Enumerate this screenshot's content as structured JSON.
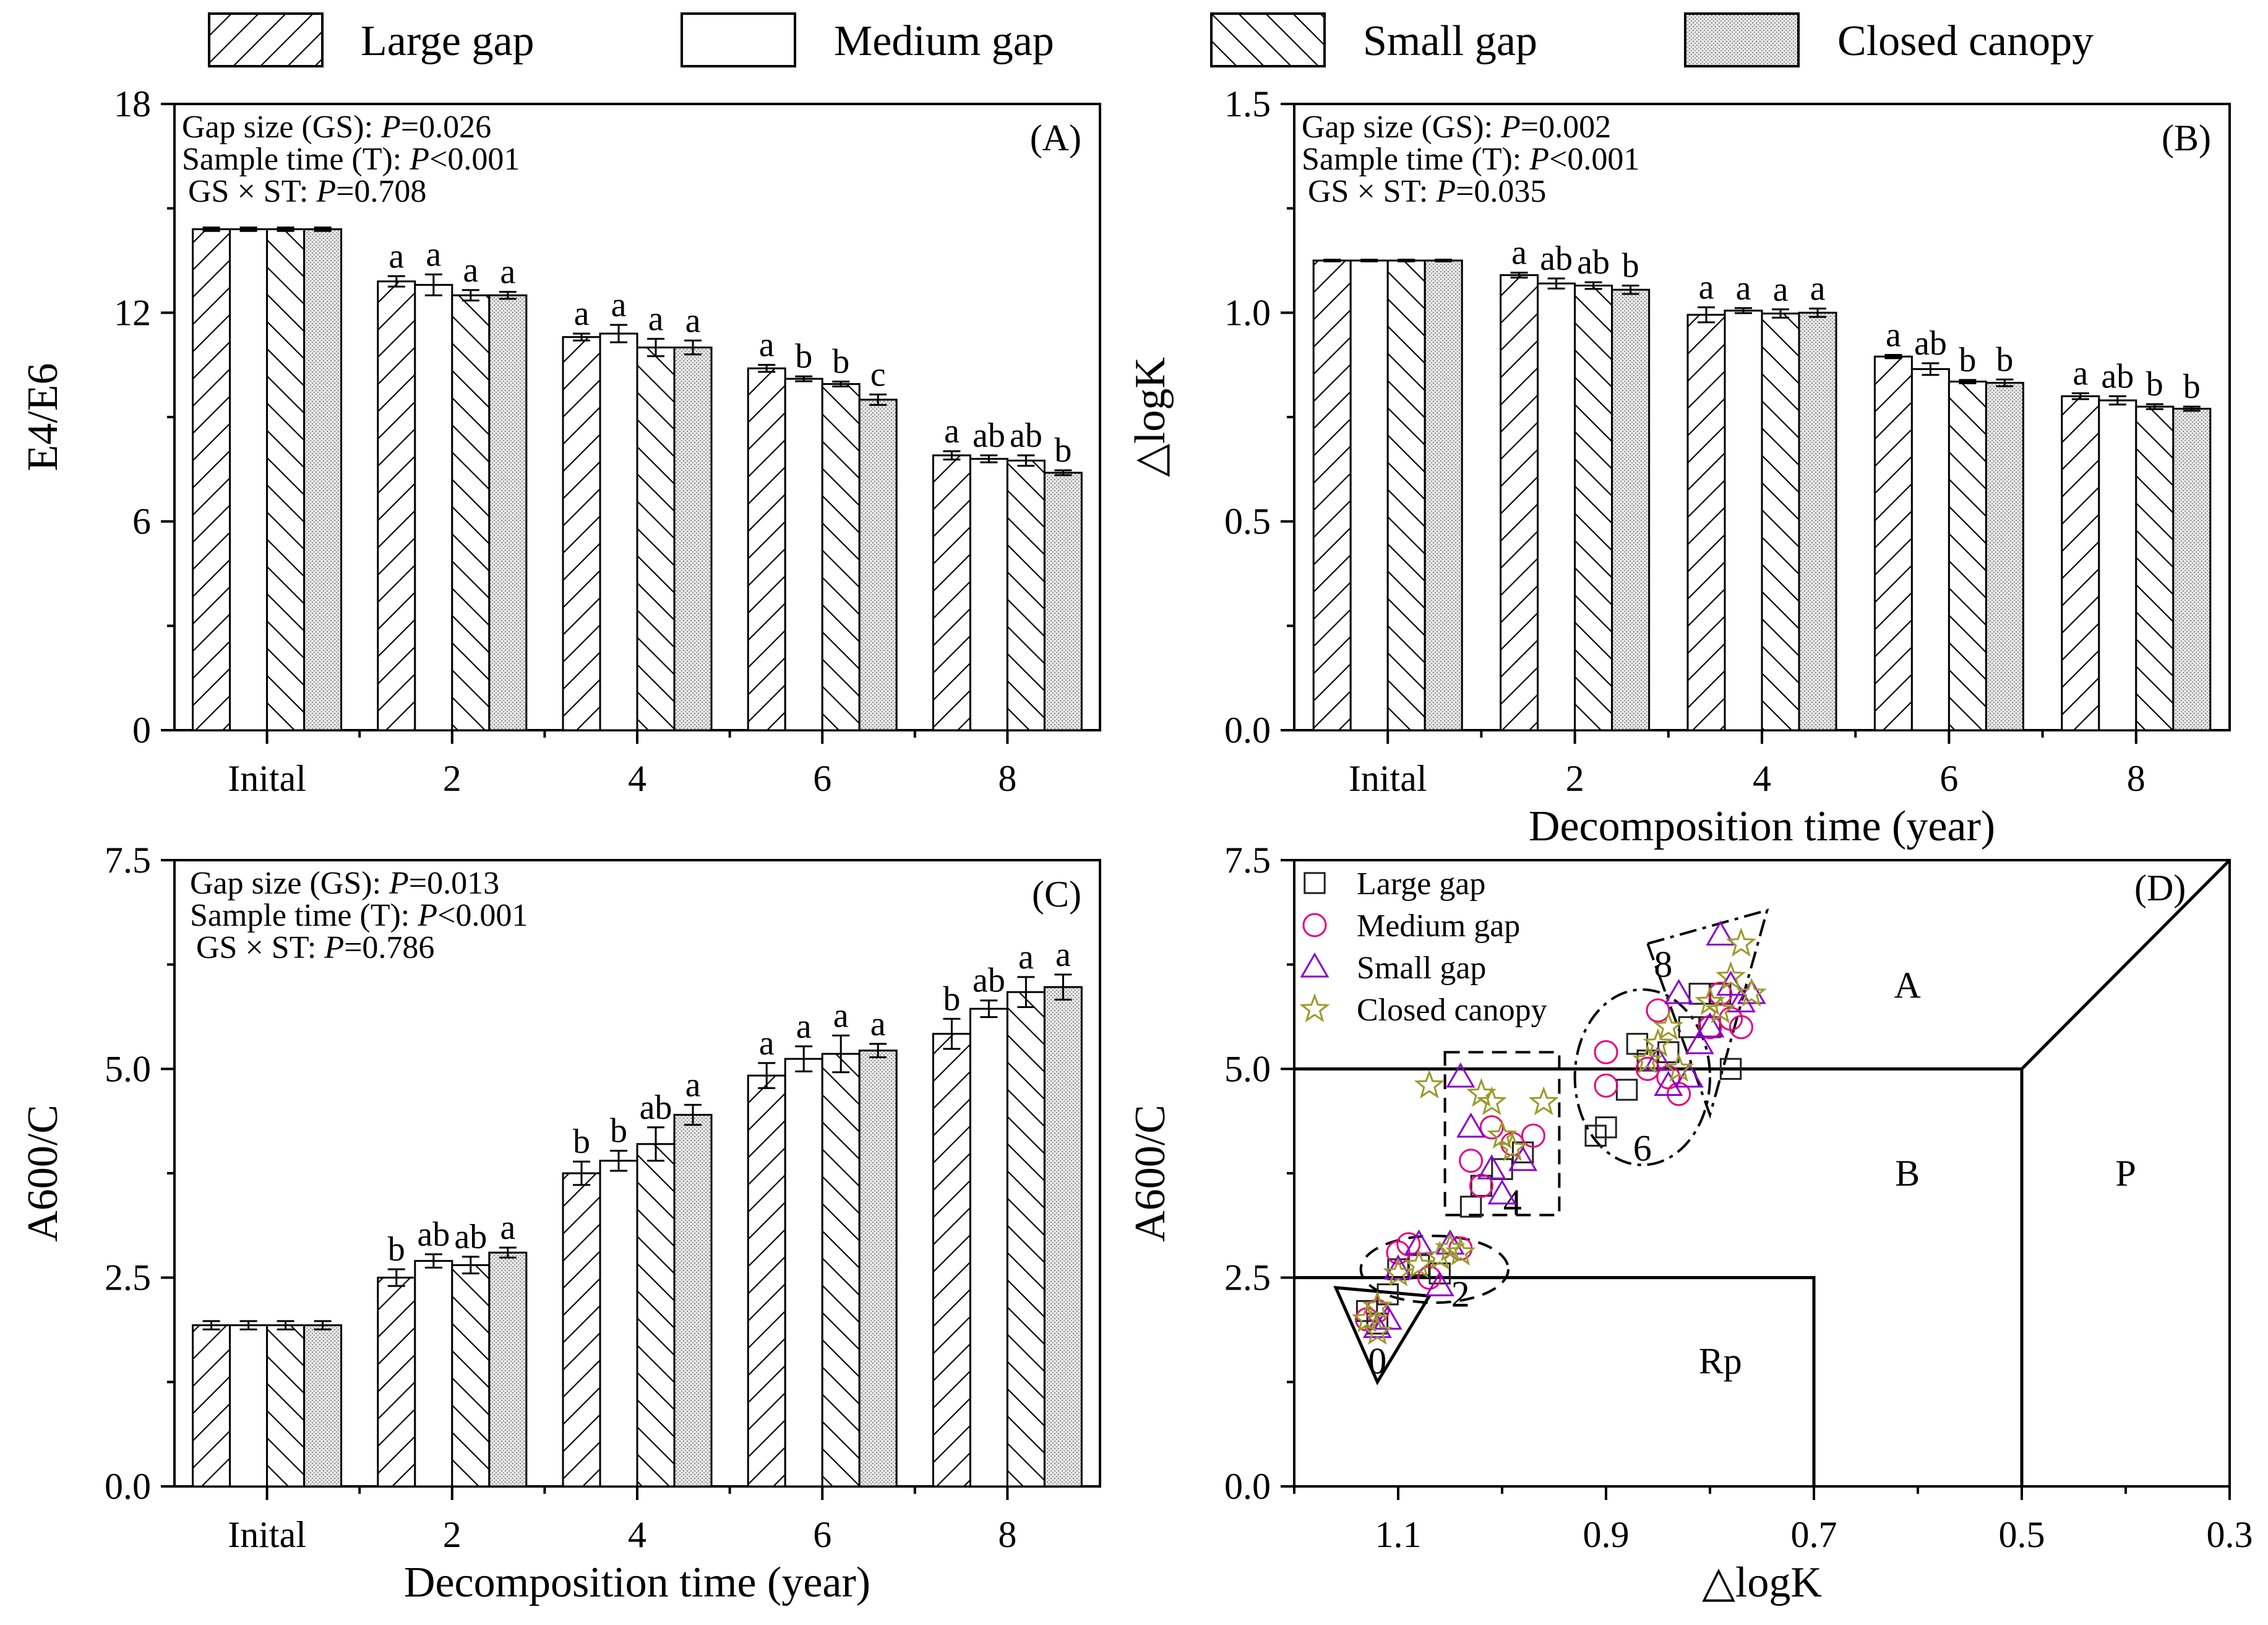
{
  "legend": [
    {
      "label": "Large gap",
      "pattern": "fwd-hatch"
    },
    {
      "label": "Medium gap",
      "pattern": "blank"
    },
    {
      "label": "Small gap",
      "pattern": "back-hatch"
    },
    {
      "label": "Closed canopy",
      "pattern": "dots"
    }
  ],
  "chart_data": [
    {
      "panel": "(A)",
      "type": "bar",
      "ylabel": "E4/E6",
      "xlabel": "",
      "ylim": [
        0,
        18
      ],
      "yticks": [
        "0",
        "6",
        "12",
        "18"
      ],
      "categories": [
        "Inital",
        "2",
        "4",
        "6",
        "8"
      ],
      "stats": [
        "Gap size (GS): P=0.026",
        "Sample time (T): P<0.001",
        "GS × ST: P=0.708"
      ],
      "series": [
        {
          "name": "Large gap",
          "values": [
            14.4,
            12.9,
            11.3,
            10.4,
            7.9
          ],
          "errors": [
            0.05,
            0.15,
            0.1,
            0.1,
            0.12
          ],
          "letters": [
            "",
            "a",
            "a",
            "a",
            "a"
          ]
        },
        {
          "name": "Medium gap",
          "values": [
            14.4,
            12.8,
            11.4,
            10.1,
            7.8
          ],
          "errors": [
            0.05,
            0.3,
            0.25,
            0.07,
            0.1
          ],
          "letters": [
            "",
            "a",
            "a",
            "b",
            "ab"
          ]
        },
        {
          "name": "Small gap",
          "values": [
            14.4,
            12.5,
            11.0,
            9.95,
            7.75
          ],
          "errors": [
            0.05,
            0.15,
            0.25,
            0.07,
            0.15
          ],
          "letters": [
            "",
            "a",
            "a",
            "b",
            "ab"
          ]
        },
        {
          "name": "Closed canopy",
          "values": [
            14.4,
            12.5,
            11.0,
            9.5,
            7.4
          ],
          "errors": [
            0.05,
            0.1,
            0.2,
            0.15,
            0.07
          ],
          "letters": [
            "",
            "a",
            "a",
            "c",
            "b"
          ]
        }
      ]
    },
    {
      "panel": "(B)",
      "type": "bar",
      "ylabel": "△logK",
      "xlabel": "Decomposition time (year)",
      "ylim": [
        0,
        1.5
      ],
      "yticks": [
        "0.0",
        "0.5",
        "1.0",
        "1.5"
      ],
      "categories": [
        "Inital",
        "2",
        "4",
        "6",
        "8"
      ],
      "stats": [
        "Gap size (GS): P=0.002",
        "Sample time (T): P<0.001",
        "GS × ST: P=0.035"
      ],
      "series": [
        {
          "name": "Large gap",
          "values": [
            1.125,
            1.09,
            0.995,
            0.895,
            0.8
          ],
          "errors": [
            0.002,
            0.006,
            0.018,
            0.004,
            0.007
          ],
          "letters": [
            "",
            "a",
            "a",
            "a",
            "a"
          ]
        },
        {
          "name": "Medium gap",
          "values": [
            1.125,
            1.07,
            1.005,
            0.865,
            0.79
          ],
          "errors": [
            0.002,
            0.012,
            0.006,
            0.014,
            0.01
          ],
          "letters": [
            "",
            "ab",
            "a",
            "ab",
            "ab"
          ]
        },
        {
          "name": "Small gap",
          "values": [
            1.125,
            1.065,
            0.998,
            0.835,
            0.775
          ],
          "errors": [
            0.002,
            0.008,
            0.01,
            0.004,
            0.006
          ],
          "letters": [
            "",
            "ab",
            "a",
            "b",
            "b"
          ]
        },
        {
          "name": "Closed canopy",
          "values": [
            1.125,
            1.055,
            1.0,
            0.832,
            0.77
          ],
          "errors": [
            0.002,
            0.01,
            0.01,
            0.008,
            0.005
          ],
          "letters": [
            "",
            "b",
            "a",
            "b",
            "b"
          ]
        }
      ]
    },
    {
      "panel": "(C)",
      "type": "bar",
      "ylabel": "A600/C",
      "xlabel": "Decomposition time (year)",
      "ylim": [
        0,
        7.5
      ],
      "yticks": [
        "0.0",
        "2.5",
        "5.0",
        "7.5"
      ],
      "categories": [
        "Inital",
        "2",
        "4",
        "6",
        "8"
      ],
      "stats": [
        "Gap size (GS): P=0.013",
        "Sample time (T): P<0.001",
        "GS × ST: P=0.786"
      ],
      "series": [
        {
          "name": "Large gap",
          "values": [
            1.93,
            2.5,
            3.75,
            4.92,
            5.42
          ],
          "errors": [
            0.05,
            0.1,
            0.14,
            0.15,
            0.18
          ],
          "letters": [
            "",
            "b",
            "b",
            "a",
            "b"
          ]
        },
        {
          "name": "Medium gap",
          "values": [
            1.93,
            2.7,
            3.9,
            5.12,
            5.72
          ],
          "errors": [
            0.05,
            0.08,
            0.12,
            0.15,
            0.1
          ],
          "letters": [
            "",
            "ab",
            "b",
            "a",
            "ab"
          ]
        },
        {
          "name": "Small gap",
          "values": [
            1.93,
            2.65,
            4.1,
            5.18,
            5.92
          ],
          "errors": [
            0.05,
            0.1,
            0.2,
            0.22,
            0.18
          ],
          "letters": [
            "",
            "ab",
            "ab",
            "a",
            "a"
          ]
        },
        {
          "name": "Closed canopy",
          "values": [
            1.93,
            2.8,
            4.45,
            5.22,
            5.98
          ],
          "errors": [
            0.05,
            0.06,
            0.12,
            0.08,
            0.15
          ],
          "letters": [
            "",
            "a",
            "a",
            "a",
            "a"
          ]
        }
      ]
    },
    {
      "panel": "(D)",
      "type": "scatter",
      "xlabel": "△logK",
      "ylabel": "A600/C",
      "xlim": [
        1.2,
        0.3
      ],
      "ylim": [
        0,
        7.5
      ],
      "xticks": [
        "1.1",
        "0.9",
        "0.7",
        "0.5",
        "0.3"
      ],
      "yticks": [
        "0.0",
        "2.5",
        "5.0",
        "7.5"
      ],
      "regions": [
        "A",
        "B",
        "P",
        "Rp"
      ],
      "group_labels": [
        "0",
        "2",
        "4",
        "6",
        "8"
      ],
      "series": [
        {
          "name": "Large gap",
          "marker": "square",
          "color": "#222222",
          "points": [
            [
              1.13,
              2.1
            ],
            [
              1.12,
              1.95
            ],
            [
              1.11,
              2.3
            ],
            [
              1.1,
              2.6
            ],
            [
              1.08,
              2.65
            ],
            [
              1.06,
              2.55
            ],
            [
              1.03,
              3.35
            ],
            [
              1.02,
              3.6
            ],
            [
              1.0,
              3.8
            ],
            [
              0.98,
              4.0
            ],
            [
              0.91,
              4.2
            ],
            [
              0.9,
              4.3
            ],
            [
              0.88,
              4.75
            ],
            [
              0.87,
              5.3
            ],
            [
              0.86,
              5.1
            ],
            [
              0.84,
              5.2
            ],
            [
              0.82,
              5.5
            ],
            [
              0.8,
              5.5
            ],
            [
              0.79,
              5.9
            ],
            [
              0.78,
              5.0
            ],
            [
              0.81,
              5.9
            ]
          ]
        },
        {
          "name": "Medium gap",
          "marker": "circle",
          "color": "#e6007e",
          "points": [
            [
              1.12,
              2.1
            ],
            [
              1.13,
              2.0
            ],
            [
              1.1,
              2.8
            ],
            [
              1.09,
              2.9
            ],
            [
              1.07,
              2.5
            ],
            [
              1.04,
              2.85
            ],
            [
              1.03,
              3.9
            ],
            [
              1.02,
              3.6
            ],
            [
              1.01,
              4.3
            ],
            [
              0.99,
              4.1
            ],
            [
              0.97,
              4.2
            ],
            [
              0.9,
              4.8
            ],
            [
              0.9,
              5.2
            ],
            [
              0.86,
              5.0
            ],
            [
              0.85,
              5.7
            ],
            [
              0.84,
              4.9
            ],
            [
              0.83,
              4.7
            ],
            [
              0.8,
              5.5
            ],
            [
              0.79,
              5.9
            ],
            [
              0.78,
              5.6
            ],
            [
              0.77,
              5.5
            ]
          ]
        },
        {
          "name": "Small gap",
          "marker": "triangle",
          "color": "#8b00cc",
          "points": [
            [
              1.12,
              1.9
            ],
            [
              1.11,
              2.0
            ],
            [
              1.1,
              2.6
            ],
            [
              1.08,
              2.9
            ],
            [
              1.06,
              2.4
            ],
            [
              1.05,
              2.9
            ],
            [
              1.04,
              4.9
            ],
            [
              1.03,
              4.3
            ],
            [
              1.01,
              3.8
            ],
            [
              1.0,
              3.5
            ],
            [
              0.98,
              3.9
            ],
            [
              0.85,
              5.1
            ],
            [
              0.84,
              4.8
            ],
            [
              0.83,
              5.9
            ],
            [
              0.82,
              4.9
            ],
            [
              0.8,
              5.5
            ],
            [
              0.79,
              6.6
            ],
            [
              0.78,
              6.0
            ],
            [
              0.77,
              5.8
            ],
            [
              0.76,
              5.9
            ],
            [
              0.81,
              5.3
            ]
          ]
        },
        {
          "name": "Closed canopy",
          "marker": "star",
          "color": "#9a9a2a",
          "points": [
            [
              1.13,
              2.0
            ],
            [
              1.12,
              1.85
            ],
            [
              1.12,
              2.15
            ],
            [
              1.1,
              2.55
            ],
            [
              1.08,
              2.65
            ],
            [
              1.06,
              2.75
            ],
            [
              1.05,
              2.85
            ],
            [
              1.04,
              2.8
            ],
            [
              1.07,
              4.8
            ],
            [
              1.02,
              4.7
            ],
            [
              1.01,
              4.6
            ],
            [
              1.0,
              4.2
            ],
            [
              0.99,
              4.05
            ],
            [
              0.96,
              4.6
            ],
            [
              0.86,
              5.1
            ],
            [
              0.85,
              5.3
            ],
            [
              0.84,
              5.5
            ],
            [
              0.83,
              5.0
            ],
            [
              0.8,
              5.8
            ],
            [
              0.78,
              6.1
            ],
            [
              0.77,
              6.5
            ],
            [
              0.76,
              5.9
            ],
            [
              0.79,
              5.7
            ]
          ]
        }
      ]
    }
  ]
}
